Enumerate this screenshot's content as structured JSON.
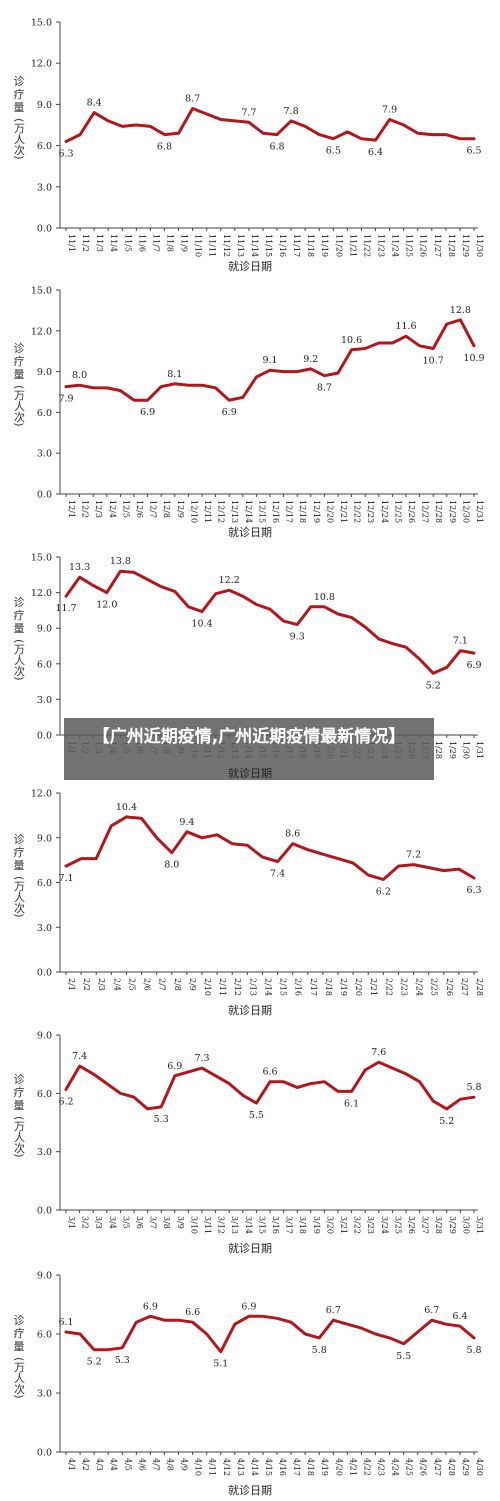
{
  "overlay_title": "【广州近期疫情,广州近期疫情最新情况】",
  "common": {
    "ylabel_chars": [
      "诊",
      "疗",
      "量",
      "(万人次)"
    ],
    "xlabel": "就诊日期"
  },
  "chart_data": [
    {
      "type": "line",
      "ylim": [
        0,
        15
      ],
      "yticks": [
        "0.0",
        "3.0",
        "6.0",
        "9.0",
        "12.0",
        "15.0"
      ],
      "categories": [
        "11/1",
        "11/2",
        "11/3",
        "11/4",
        "11/5",
        "11/6",
        "11/7",
        "11/8",
        "11/9",
        "11/10",
        "11/11",
        "11/12",
        "11/13",
        "11/14",
        "11/15",
        "11/16",
        "11/17",
        "11/18",
        "11/19",
        "11/20",
        "11/21",
        "11/22",
        "11/23",
        "11/24",
        "11/25",
        "11/26",
        "11/27",
        "11/28",
        "11/29",
        "11/30"
      ],
      "values": [
        6.3,
        6.8,
        8.4,
        7.8,
        7.4,
        7.5,
        7.4,
        6.8,
        6.9,
        8.7,
        8.3,
        7.9,
        7.8,
        7.7,
        6.9,
        6.8,
        7.8,
        7.4,
        6.8,
        6.5,
        7.0,
        6.5,
        6.4,
        7.9,
        7.5,
        6.9,
        6.8,
        6.8,
        6.5,
        6.5
      ],
      "annotations": [
        {
          "i": 0,
          "text": "6.3",
          "pos": "below"
        },
        {
          "i": 2,
          "text": "8.4",
          "pos": "above"
        },
        {
          "i": 7,
          "text": "6.8",
          "pos": "below"
        },
        {
          "i": 9,
          "text": "8.7",
          "pos": "above"
        },
        {
          "i": 13,
          "text": "7.7",
          "pos": "above"
        },
        {
          "i": 15,
          "text": "6.8",
          "pos": "below"
        },
        {
          "i": 16,
          "text": "7.8",
          "pos": "above"
        },
        {
          "i": 19,
          "text": "6.5",
          "pos": "below"
        },
        {
          "i": 22,
          "text": "6.4",
          "pos": "below"
        },
        {
          "i": 23,
          "text": "7.9",
          "pos": "above"
        },
        {
          "i": 29,
          "text": "6.5",
          "pos": "below"
        }
      ]
    },
    {
      "type": "line",
      "ylim": [
        0,
        15
      ],
      "yticks": [
        "0.0",
        "3.0",
        "6.0",
        "9.0",
        "12.0",
        "15.0"
      ],
      "categories": [
        "12/1",
        "12/2",
        "12/3",
        "12/4",
        "12/5",
        "12/6",
        "12/7",
        "12/8",
        "12/9",
        "12/10",
        "12/11",
        "12/12",
        "12/13",
        "12/14",
        "12/15",
        "12/16",
        "12/17",
        "12/18",
        "12/19",
        "12/20",
        "12/21",
        "12/22",
        "12/23",
        "12/24",
        "12/25",
        "12/26",
        "12/27",
        "12/28",
        "12/29",
        "12/30",
        "12/31"
      ],
      "values": [
        7.9,
        8.0,
        7.8,
        7.8,
        7.6,
        6.9,
        6.9,
        7.9,
        8.1,
        8.0,
        8.0,
        7.8,
        6.9,
        7.1,
        8.6,
        9.1,
        9.0,
        9.0,
        9.2,
        8.7,
        8.9,
        10.6,
        10.7,
        11.1,
        11.1,
        11.6,
        10.9,
        10.7,
        12.5,
        12.8,
        10.9
      ],
      "annotations": [
        {
          "i": 0,
          "text": "7.9",
          "pos": "below"
        },
        {
          "i": 1,
          "text": "8.0",
          "pos": "above"
        },
        {
          "i": 6,
          "text": "6.9",
          "pos": "below"
        },
        {
          "i": 8,
          "text": "8.1",
          "pos": "above"
        },
        {
          "i": 12,
          "text": "6.9",
          "pos": "below"
        },
        {
          "i": 15,
          "text": "9.1",
          "pos": "above"
        },
        {
          "i": 18,
          "text": "9.2",
          "pos": "above"
        },
        {
          "i": 19,
          "text": "8.7",
          "pos": "below"
        },
        {
          "i": 21,
          "text": "10.6",
          "pos": "above"
        },
        {
          "i": 25,
          "text": "11.6",
          "pos": "above"
        },
        {
          "i": 27,
          "text": "10.7",
          "pos": "below"
        },
        {
          "i": 29,
          "text": "12.8",
          "pos": "above"
        },
        {
          "i": 30,
          "text": "10.9",
          "pos": "below"
        }
      ]
    },
    {
      "type": "line",
      "ylim": [
        0,
        15
      ],
      "yticks": [
        "0.0",
        "3.0",
        "6.0",
        "9.0",
        "12.0",
        "15.0"
      ],
      "categories": [
        "1/1",
        "1/2",
        "1/3",
        "1/4",
        "1/5",
        "1/6",
        "1/7",
        "1/8",
        "1/9",
        "1/10",
        "1/11",
        "1/12",
        "1/13",
        "1/14",
        "1/15",
        "1/16",
        "1/17",
        "1/18",
        "1/19",
        "1/20",
        "1/21",
        "1/22",
        "1/23",
        "1/24",
        "1/25",
        "1/26",
        "1/27",
        "1/28",
        "1/29",
        "1/30",
        "1/31"
      ],
      "values": [
        11.7,
        13.3,
        12.6,
        12.0,
        13.8,
        13.7,
        13.1,
        12.5,
        12.1,
        10.8,
        10.4,
        11.9,
        12.2,
        11.7,
        11.0,
        10.6,
        9.6,
        9.3,
        10.8,
        10.8,
        10.2,
        9.9,
        9.1,
        8.1,
        7.7,
        7.4,
        6.4,
        5.2,
        5.7,
        7.1,
        6.9
      ],
      "annotations": [
        {
          "i": 0,
          "text": "11.7",
          "pos": "below"
        },
        {
          "i": 1,
          "text": "13.3",
          "pos": "above"
        },
        {
          "i": 3,
          "text": "12.0",
          "pos": "below"
        },
        {
          "i": 4,
          "text": "13.8",
          "pos": "above"
        },
        {
          "i": 10,
          "text": "10.4",
          "pos": "below"
        },
        {
          "i": 12,
          "text": "12.2",
          "pos": "above"
        },
        {
          "i": 17,
          "text": "9.3",
          "pos": "below"
        },
        {
          "i": 19,
          "text": "10.8",
          "pos": "above"
        },
        {
          "i": 27,
          "text": "5.2",
          "pos": "below"
        },
        {
          "i": 29,
          "text": "7.1",
          "pos": "above"
        },
        {
          "i": 30,
          "text": "6.9",
          "pos": "below"
        }
      ]
    },
    {
      "type": "line",
      "ylim": [
        0,
        12
      ],
      "yticks": [
        "0.0",
        "3.0",
        "6.0",
        "9.0",
        "12.0"
      ],
      "categories": [
        "2/1",
        "2/2",
        "2/3",
        "2/4",
        "2/5",
        "2/6",
        "2/7",
        "2/8",
        "2/9",
        "2/10",
        "2/11",
        "2/12",
        "2/13",
        "2/14",
        "2/15",
        "2/16",
        "2/17",
        "2/18",
        "2/19",
        "2/20",
        "2/21",
        "2/22",
        "2/23",
        "2/24",
        "2/25",
        "2/26",
        "2/27",
        "2/28"
      ],
      "values": [
        7.1,
        7.6,
        7.6,
        9.8,
        10.4,
        10.3,
        9.0,
        8.0,
        9.4,
        9.0,
        9.2,
        8.6,
        8.5,
        7.7,
        7.4,
        8.6,
        8.2,
        7.9,
        7.6,
        7.3,
        6.5,
        6.2,
        7.1,
        7.2,
        7.0,
        6.8,
        6.9,
        6.3
      ],
      "annotations": [
        {
          "i": 0,
          "text": "7.1",
          "pos": "below"
        },
        {
          "i": 4,
          "text": "10.4",
          "pos": "above"
        },
        {
          "i": 7,
          "text": "8.0",
          "pos": "below"
        },
        {
          "i": 8,
          "text": "9.4",
          "pos": "above"
        },
        {
          "i": 14,
          "text": "7.4",
          "pos": "below"
        },
        {
          "i": 15,
          "text": "8.6",
          "pos": "above"
        },
        {
          "i": 21,
          "text": "6.2",
          "pos": "below"
        },
        {
          "i": 23,
          "text": "7.2",
          "pos": "above"
        },
        {
          "i": 27,
          "text": "6.3",
          "pos": "below"
        }
      ]
    },
    {
      "type": "line",
      "ylim": [
        0,
        9
      ],
      "yticks": [
        "0.0",
        "3.0",
        "6.0",
        "9.0"
      ],
      "categories": [
        "3/1",
        "3/2",
        "3/3",
        "3/4",
        "3/5",
        "3/6",
        "3/7",
        "3/8",
        "3/9",
        "3/10",
        "3/11",
        "3/12",
        "3/13",
        "3/14",
        "3/15",
        "3/16",
        "3/17",
        "3/18",
        "3/19",
        "3/20",
        "3/21",
        "3/22",
        "3/23",
        "3/24",
        "3/25",
        "3/26",
        "3/27",
        "3/28",
        "3/29",
        "3/30",
        "3/31"
      ],
      "values": [
        6.2,
        7.4,
        7.0,
        6.5,
        6.0,
        5.8,
        5.2,
        5.3,
        6.9,
        7.1,
        7.3,
        6.9,
        6.5,
        5.9,
        5.5,
        6.6,
        6.6,
        6.3,
        6.5,
        6.6,
        6.1,
        6.1,
        7.2,
        7.6,
        7.3,
        7.0,
        6.6,
        5.6,
        5.2,
        5.7,
        5.8
      ],
      "annotations": [
        {
          "i": 0,
          "text": "6.2",
          "pos": "below"
        },
        {
          "i": 1,
          "text": "7.4",
          "pos": "above"
        },
        {
          "i": 7,
          "text": "5.3",
          "pos": "below"
        },
        {
          "i": 8,
          "text": "6.9",
          "pos": "above"
        },
        {
          "i": 10,
          "text": "7.3",
          "pos": "above"
        },
        {
          "i": 14,
          "text": "5.5",
          "pos": "below"
        },
        {
          "i": 15,
          "text": "6.6",
          "pos": "above"
        },
        {
          "i": 21,
          "text": "6.1",
          "pos": "below"
        },
        {
          "i": 23,
          "text": "7.6",
          "pos": "above"
        },
        {
          "i": 28,
          "text": "5.2",
          "pos": "below"
        },
        {
          "i": 30,
          "text": "5.8",
          "pos": "above"
        }
      ]
    },
    {
      "type": "line",
      "ylim": [
        0,
        9
      ],
      "yticks": [
        "0.0",
        "3.0",
        "6.0",
        "9.0"
      ],
      "categories": [
        "4/1",
        "4/2",
        "4/3",
        "4/4",
        "4/5",
        "4/6",
        "4/7",
        "4/8",
        "4/9",
        "4/10",
        "4/11",
        "4/12",
        "4/13",
        "4/14",
        "4/15",
        "4/16",
        "4/17",
        "4/18",
        "4/19",
        "4/20",
        "4/21",
        "4/22",
        "4/23",
        "4/24",
        "4/25",
        "4/26",
        "4/27",
        "4/28",
        "4/29",
        "4/30"
      ],
      "values": [
        6.1,
        6.0,
        5.2,
        5.2,
        5.3,
        6.6,
        6.9,
        6.7,
        6.7,
        6.6,
        6.0,
        5.1,
        6.5,
        6.9,
        6.9,
        6.8,
        6.6,
        6.0,
        5.8,
        6.7,
        6.5,
        6.3,
        6.0,
        5.8,
        5.5,
        6.1,
        6.7,
        6.5,
        6.4,
        5.8
      ],
      "annotations": [
        {
          "i": 0,
          "text": "6.1",
          "pos": "above"
        },
        {
          "i": 2,
          "text": "5.2",
          "pos": "below"
        },
        {
          "i": 4,
          "text": "5.3",
          "pos": "below"
        },
        {
          "i": 6,
          "text": "6.9",
          "pos": "above"
        },
        {
          "i": 9,
          "text": "6.6",
          "pos": "above"
        },
        {
          "i": 11,
          "text": "5.1",
          "pos": "below"
        },
        {
          "i": 13,
          "text": "6.9",
          "pos": "above"
        },
        {
          "i": 18,
          "text": "5.8",
          "pos": "below"
        },
        {
          "i": 19,
          "text": "6.7",
          "pos": "above"
        },
        {
          "i": 24,
          "text": "5.5",
          "pos": "below"
        },
        {
          "i": 26,
          "text": "6.7",
          "pos": "above"
        },
        {
          "i": 28,
          "text": "6.4",
          "pos": "above"
        },
        {
          "i": 29,
          "text": "5.8",
          "pos": "below"
        }
      ]
    }
  ]
}
